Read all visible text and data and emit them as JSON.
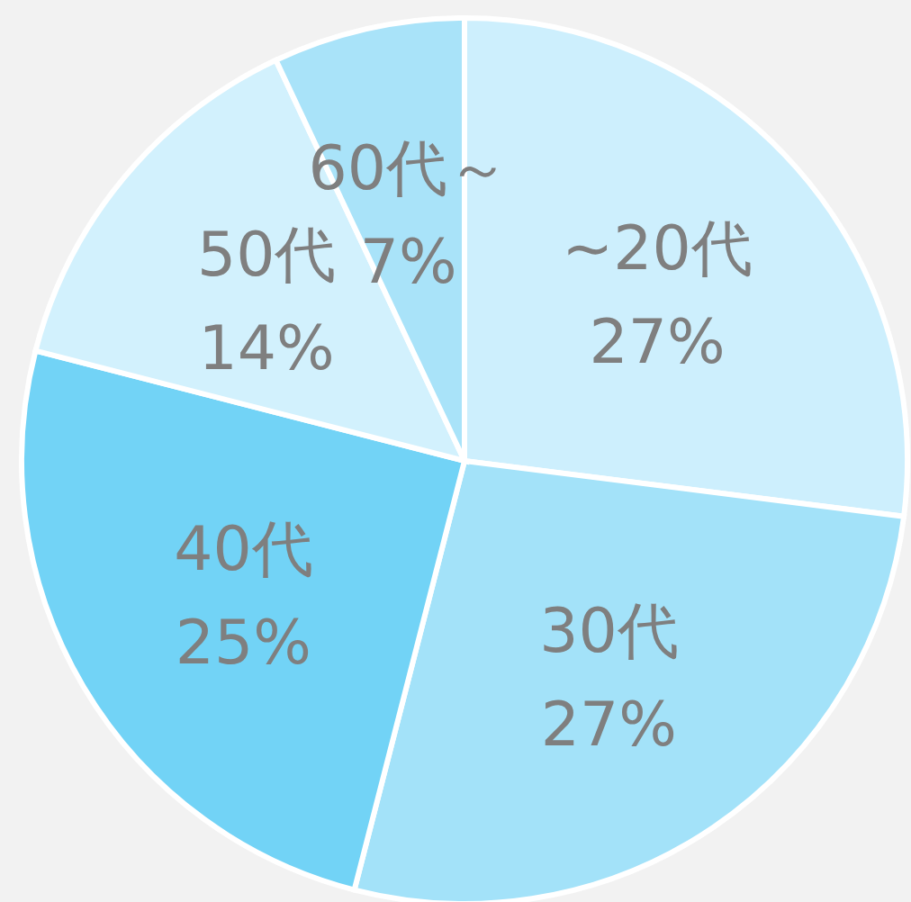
{
  "chart_data": {
    "type": "pie",
    "categories": [
      "~20代",
      "30代",
      "40代",
      "50代",
      "60代～"
    ],
    "values": [
      27,
      27,
      25,
      14,
      7
    ],
    "colors": [
      "#cdeffd",
      "#a3e2f9",
      "#72d3f6",
      "#d2f1fd",
      "#a9e3f9"
    ],
    "value_labels": [
      "27%",
      "27%",
      "25%",
      "14%",
      "7%"
    ]
  }
}
